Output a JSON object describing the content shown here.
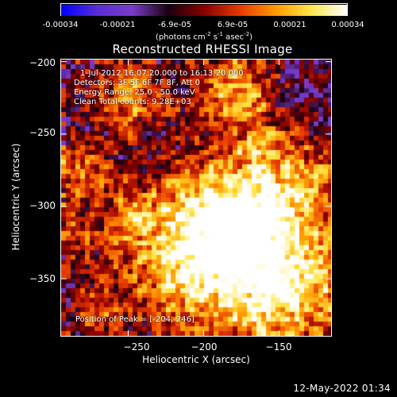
{
  "colorbar": {
    "ticks": [
      "-0.00034",
      "-0.00021",
      "-6.9e-05",
      "6.9e-05",
      "0.00021",
      "0.00034"
    ],
    "unit_prefix": "(photons cm",
    "unit_exp1": "-2",
    "unit_mid": " s",
    "unit_exp2": "-1",
    "unit_mid2": " asec",
    "unit_exp3": "-2",
    "unit_suffix": ")"
  },
  "plot": {
    "title": "Reconstructed RHESSI Image",
    "info_lines": [
      "1-Jul-2012 16:07:20.000 to 16:13:20.000",
      "Detectors: 3F 5F 6F 7F 8F, Att 0",
      "Energy Range: 25.0 - 50.0 keV",
      "Clean    Total counts: 9.28E+03"
    ],
    "peak_text": "Position of Peak = [-204,-246]"
  },
  "chart_data": {
    "type": "heatmap",
    "title": "Reconstructed RHESSI Image",
    "xlabel": "Heliocentric X (arcsec)",
    "ylabel": "Heliocentric Y (arcsec)",
    "xlim": [
      -295,
      -115
    ],
    "ylim": [
      -390,
      -198
    ],
    "x_ticks": [
      -250,
      -200,
      -150
    ],
    "x_tick_labels": [
      "−250",
      "−200",
      "−150"
    ],
    "y_ticks": [
      -200,
      -250,
      -300,
      -350
    ],
    "y_tick_labels": [
      "−200",
      "−250",
      "−300",
      "−350"
    ],
    "colorbar_range": [
      -0.00034,
      0.00034
    ],
    "peak_position": [
      -204,
      -246
    ],
    "colormap": [
      "#0000ff",
      "#5a2fd6",
      "#7a3cc8",
      "#1a0010",
      "#8b0000",
      "#e83a00",
      "#ff9a00",
      "#ffe64a",
      "#ffffff"
    ]
  },
  "footer": {
    "timestamp": "12-May-2022 01:34"
  }
}
